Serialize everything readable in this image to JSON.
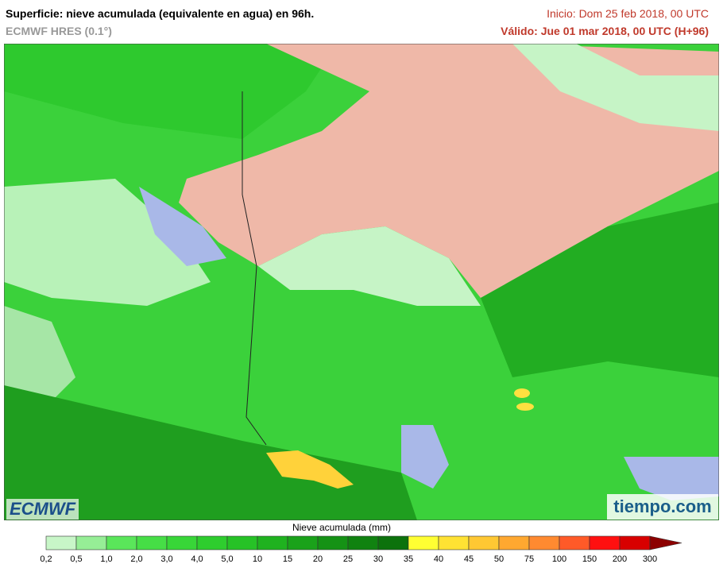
{
  "header": {
    "title": "Superficie: nieve acumulada (equivalente en agua) en 96h.",
    "model": "ECMWF HRES (0.1°)",
    "init": "Inicio: Dom 25 feb 2018, 00 UTC",
    "valid": "Válido: Jue 01 mar 2018, 00 UTC (H+96)"
  },
  "logos": {
    "left": "ECMWF",
    "right": "tiempo.com"
  },
  "legend": {
    "title": "Nieve acumulada (mm)",
    "labels": [
      "0,2",
      "0,5",
      "1,0",
      "2,0",
      "3,0",
      "4,0",
      "5,0",
      "10",
      "15",
      "20",
      "25",
      "30",
      "35",
      "40",
      "45",
      "50",
      "75",
      "100",
      "150",
      "200",
      "300"
    ],
    "colors": [
      "#c8f6c8",
      "#96ee96",
      "#5ae65a",
      "#46de46",
      "#38d638",
      "#2ecd2e",
      "#26c226",
      "#1fb21f",
      "#1aa21a",
      "#159215",
      "#108210",
      "#0c720c",
      "#ffff33",
      "#ffe233",
      "#ffc833",
      "#ffa830",
      "#ff8a30",
      "#ff5a28",
      "#ff1010",
      "#d80000"
    ],
    "arrow_color": "#8c0000"
  }
}
